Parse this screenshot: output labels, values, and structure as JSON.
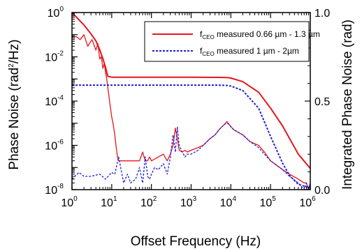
{
  "chart_data": {
    "type": "line",
    "xscale": "log",
    "yscale_left": "log",
    "yscale_right": "linear",
    "xlim": [
      1,
      1000000
    ],
    "ylim_left": [
      1e-08,
      1
    ],
    "ylim_right": [
      0,
      1
    ],
    "xlabel": "Offset Frequency (Hz)",
    "ylabel_left_prefix": "Phase Noise (rad",
    "ylabel_left_sup": "2",
    "ylabel_left_suffix": "/Hz)",
    "ylabel_right": "Integrated Phase Noise (rad)",
    "x_ticks": [
      {
        "base": "10",
        "exp": "0",
        "value": 1
      },
      {
        "base": "10",
        "exp": "1",
        "value": 10
      },
      {
        "base": "10",
        "exp": "2",
        "value": 100
      },
      {
        "base": "10",
        "exp": "3",
        "value": 1000
      },
      {
        "base": "10",
        "exp": "4",
        "value": 10000
      },
      {
        "base": "10",
        "exp": "5",
        "value": 100000
      },
      {
        "base": "10",
        "exp": "6",
        "value": 1000000
      }
    ],
    "y_left_ticks": [
      {
        "base": "10",
        "exp": "0",
        "value": 1
      },
      {
        "base": "10",
        "exp": "-2",
        "value": 0.01
      },
      {
        "base": "10",
        "exp": "-4",
        "value": 0.0001
      },
      {
        "base": "10",
        "exp": "-6",
        "value": 1e-06
      },
      {
        "base": "10",
        "exp": "-8",
        "value": 1e-08
      }
    ],
    "y_right_ticks": [
      {
        "label": "1.0",
        "value": 1.0
      },
      {
        "label": "0.5",
        "value": 0.5
      },
      {
        "label": "0.0",
        "value": 0.0
      }
    ],
    "legend_position": "top-right",
    "series": [
      {
        "name": "fCEO measured 0.66 µm - 1.3 µm",
        "legend_main": "f",
        "legend_sub": "CEO",
        "legend_rest": " measured 0.66 µm - 1.3 µm",
        "color": "#e8141c",
        "style": "solid",
        "axis": "left",
        "x": [
          1,
          1.3,
          1.6,
          2,
          2.5,
          3.2,
          4,
          4.5,
          5,
          5.5,
          6,
          6.5,
          7,
          7.5,
          8,
          9,
          10,
          11,
          12,
          13,
          14,
          15,
          17,
          20,
          25,
          30,
          40,
          50,
          60,
          70,
          80,
          90,
          100,
          150,
          200,
          250,
          300,
          350,
          400,
          450,
          500,
          600,
          700,
          800,
          1000,
          1500,
          2000,
          3000,
          4000,
          5000,
          6000,
          7000,
          8000,
          9000,
          10000,
          12000,
          15000,
          20000,
          30000,
          50000,
          70000,
          100000,
          200000,
          300000,
          500000,
          700000,
          800000,
          900000,
          1000000
        ],
        "y": [
          0.08,
          0.08,
          0.06,
          0.1,
          0.03,
          0.06,
          0.02,
          0.04,
          0.008,
          0.01,
          0.003,
          0.005,
          0.002,
          0.001,
          0.0004,
          8e-05,
          2e-05,
          8e-06,
          3e-06,
          8e-07,
          3e-07,
          2e-07,
          2e-07,
          2e-07,
          2e-07,
          2e-07,
          2e-07,
          2e-07,
          5e-07,
          2e-07,
          2e-07,
          3e-07,
          2e-07,
          3e-07,
          4e-07,
          2e-07,
          4e-07,
          1e-06,
          6e-06,
          2e-06,
          6e-07,
          5e-07,
          6e-07,
          5e-07,
          6e-07,
          8e-07,
          1e-06,
          2e-06,
          3e-06,
          5e-06,
          7e-06,
          9e-06,
          1.2e-05,
          9e-06,
          7e-06,
          5e-06,
          4e-06,
          3e-06,
          1.5e-06,
          1e-06,
          5e-07,
          2e-07,
          8e-08,
          5e-08,
          3e-08,
          2e-08,
          2e-08,
          1e-08,
          2e-08
        ]
      },
      {
        "name": "fCEO measured 1 µm - 2µm",
        "legend_main": "f",
        "legend_sub": "CEO",
        "legend_rest": " measured 1 µm - 2µm",
        "color": "#1f1fd6",
        "style": "dashed",
        "axis": "left",
        "x": [
          1,
          1.5,
          2,
          3,
          5,
          7,
          10,
          12,
          15,
          20,
          25,
          30,
          40,
          50,
          60,
          70,
          80,
          90,
          100,
          120,
          150,
          200,
          250,
          300,
          350,
          400,
          450,
          500,
          600,
          700,
          800,
          1000,
          1500,
          2000,
          3000,
          4000,
          5000,
          6000,
          7000,
          8000,
          9000,
          10000,
          12000,
          15000,
          20000,
          30000,
          50000,
          70000,
          100000,
          200000,
          300000,
          500000,
          700000,
          800000,
          900000,
          1000000
        ],
        "y": [
          3e-08,
          6e-08,
          4e-08,
          4e-08,
          5e-08,
          3e-08,
          6e-08,
          5e-08,
          3e-07,
          2e-08,
          5e-08,
          2e-08,
          3e-08,
          1e-07,
          2e-08,
          3e-07,
          4e-08,
          3e-08,
          5e-08,
          1e-07,
          8e-08,
          1.5e-07,
          5e-08,
          3e-07,
          3e-06,
          5e-07,
          7e-06,
          1e-06,
          5e-07,
          3e-07,
          4e-07,
          4e-07,
          6e-07,
          1e-06,
          2e-06,
          3e-06,
          5e-06,
          7e-06,
          9e-06,
          1e-05,
          9e-06,
          7e-06,
          5e-06,
          4e-06,
          3e-06,
          1.5e-06,
          8e-07,
          4e-07,
          2e-07,
          8e-08,
          4e-08,
          2e-08,
          1e-08,
          2e-08,
          1e-08,
          2e-08
        ]
      },
      {
        "name": "fCEO measured 0.66 µm - 1.3 µm (integrated)",
        "color": "#e8141c",
        "style": "solid",
        "axis": "right",
        "x": [
          1,
          2,
          3,
          4,
          5,
          6,
          7,
          8,
          10,
          20,
          50,
          100,
          1000,
          5000,
          8000,
          10000,
          20000,
          50000,
          100000,
          200000,
          500000,
          1000000
        ],
        "y": [
          1.0,
          0.93,
          0.88,
          0.84,
          0.79,
          0.74,
          0.69,
          0.64,
          0.635,
          0.635,
          0.635,
          0.635,
          0.635,
          0.634,
          0.633,
          0.63,
          0.61,
          0.55,
          0.46,
          0.36,
          0.2,
          0.12
        ]
      },
      {
        "name": "fCEO measured 1 µm - 2µm (integrated)",
        "color": "#1f1fd6",
        "style": "dashed",
        "axis": "right",
        "x": [
          1,
          10,
          100,
          1000,
          5000,
          8000,
          10000,
          20000,
          50000,
          100000,
          200000,
          300000,
          500000,
          1000000
        ],
        "y": [
          0.59,
          0.59,
          0.59,
          0.59,
          0.59,
          0.588,
          0.585,
          0.56,
          0.46,
          0.3,
          0.15,
          0.08,
          0.03,
          0.01
        ]
      }
    ]
  }
}
